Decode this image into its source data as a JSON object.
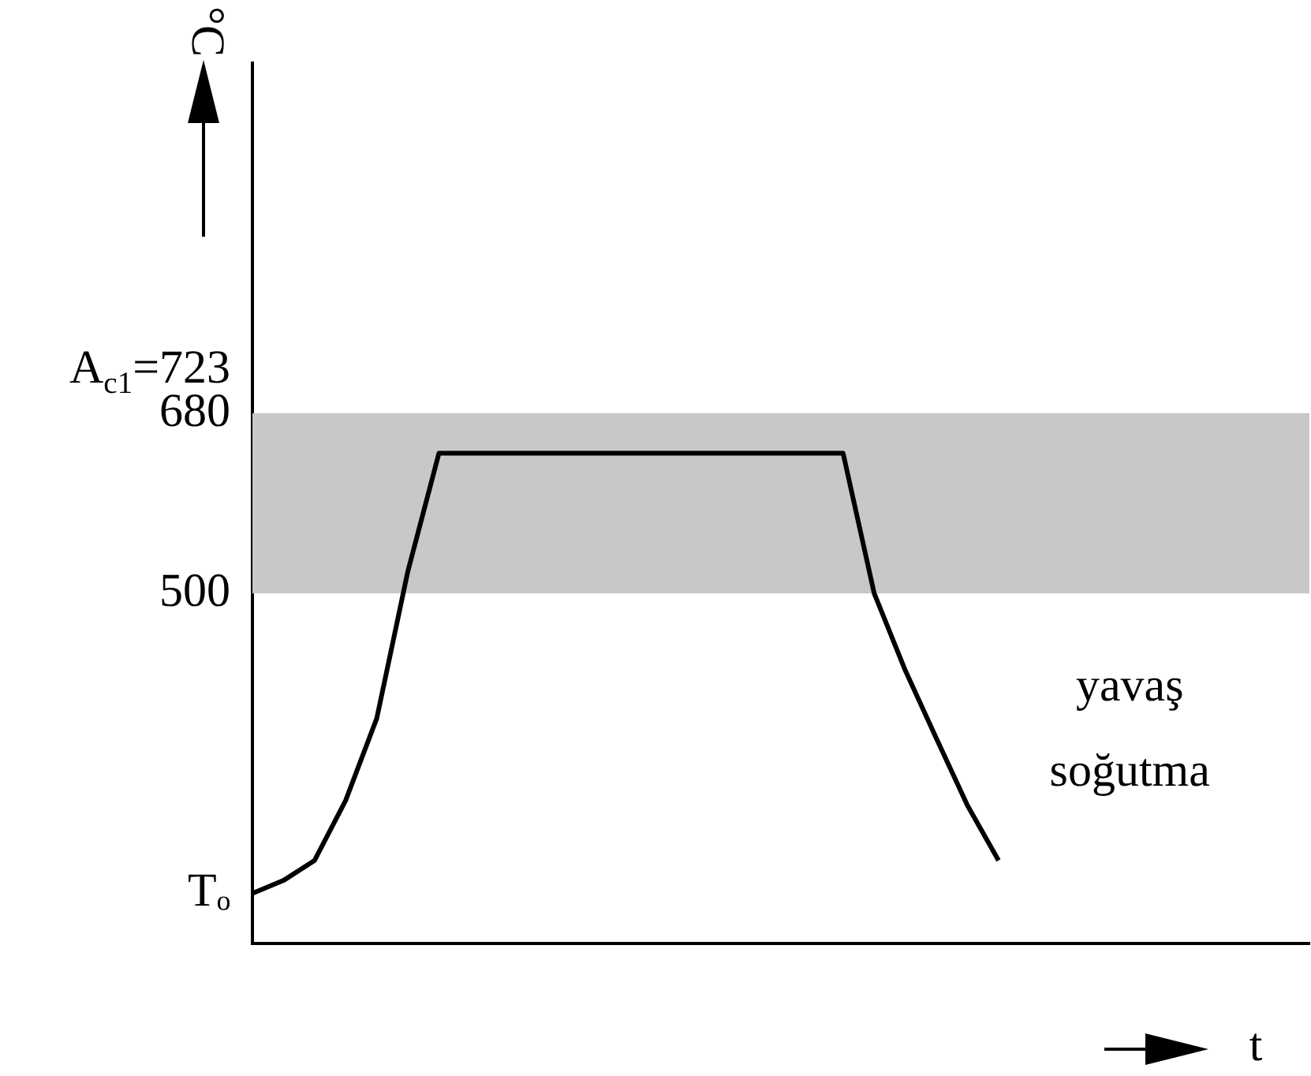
{
  "chart_data": {
    "type": "line",
    "xlabel": "t",
    "ylabel": "°C",
    "categories": [
      null,
      null,
      null,
      null,
      null,
      null,
      null,
      null,
      null,
      null,
      null,
      null,
      null,
      null,
      null,
      null,
      null,
      null,
      null,
      null,
      null,
      null,
      null,
      null,
      null,
      null,
      null,
      null,
      null,
      null,
      null,
      null,
      null,
      null,
      null
    ],
    "series": [
      {
        "color": "#000000",
        "values": [
          200,
          213,
          233,
          293,
          375,
          522,
          640,
          640,
          640,
          640,
          640,
          640,
          640,
          640,
          640,
          640,
          640,
          640,
          640,
          640,
          500,
          423,
          355,
          288,
          233,
          null,
          null,
          null,
          null,
          null,
          null,
          null,
          null,
          null,
          null
        ]
      }
    ],
    "ylim": [
      150,
      1030
    ],
    "yticks": [
      {
        "value": 200,
        "label": "Tₒ"
      },
      500,
      680,
      {
        "value": 723,
        "label": "A$_{c1}$=723"
      }
    ],
    "bands": [
      {
        "axis": "y",
        "from": 500,
        "to": 680,
        "color": "#c8c8c8"
      }
    ],
    "annotations": [
      "yavaş\nsoğutma"
    ],
    "grid": false,
    "legend": false,
    "marker": "none",
    "line_style": "solid",
    "tick_labels": "y"
  }
}
